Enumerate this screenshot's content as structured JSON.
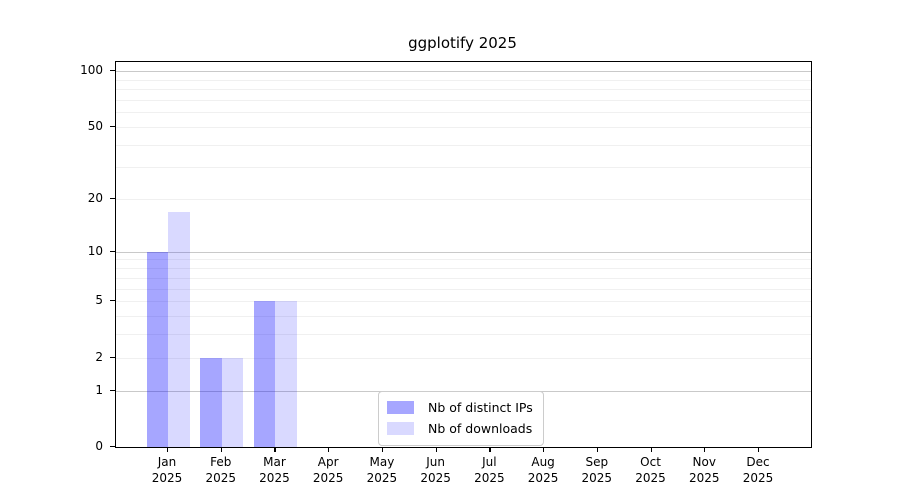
{
  "chart_data": {
    "type": "bar",
    "title": "ggplotify 2025",
    "categories": [
      "Jan",
      "Feb",
      "Mar",
      "Apr",
      "May",
      "Jun",
      "Jul",
      "Aug",
      "Sep",
      "Oct",
      "Nov",
      "Dec"
    ],
    "category_year": "2025",
    "series": [
      {
        "name": "Nb of distinct IPs",
        "color": "#0000ff",
        "alpha": 0.35,
        "values": [
          10,
          2,
          5,
          0,
          0,
          0,
          0,
          0,
          0,
          0,
          0,
          0
        ]
      },
      {
        "name": "Nb of downloads",
        "color": "#0000ff",
        "alpha": 0.15,
        "values": [
          17,
          2,
          5,
          0,
          0,
          0,
          0,
          0,
          0,
          0,
          0,
          0
        ]
      }
    ],
    "y_axis": {
      "scale": "log1p",
      "tick_values": [
        0,
        1,
        2,
        5,
        10,
        20,
        50,
        100
      ],
      "tick_labels": [
        "0",
        "1",
        "2",
        "5",
        "10",
        "20",
        "50",
        "100"
      ],
      "major_grid_values": [
        1,
        10,
        100
      ],
      "minor_grid_values": [
        2,
        3,
        4,
        5,
        6,
        7,
        8,
        9,
        20,
        30,
        40,
        50,
        60,
        70,
        80,
        90
      ],
      "ylim": [
        0,
        112
      ]
    },
    "legend": {
      "position": "bottom-center"
    },
    "grid": true
  },
  "style": {
    "major_grid_color": "#c9c9c9",
    "minor_grid_color": "#f0f0f0",
    "spine_color": "#000000",
    "background_color": "#ffffff"
  }
}
